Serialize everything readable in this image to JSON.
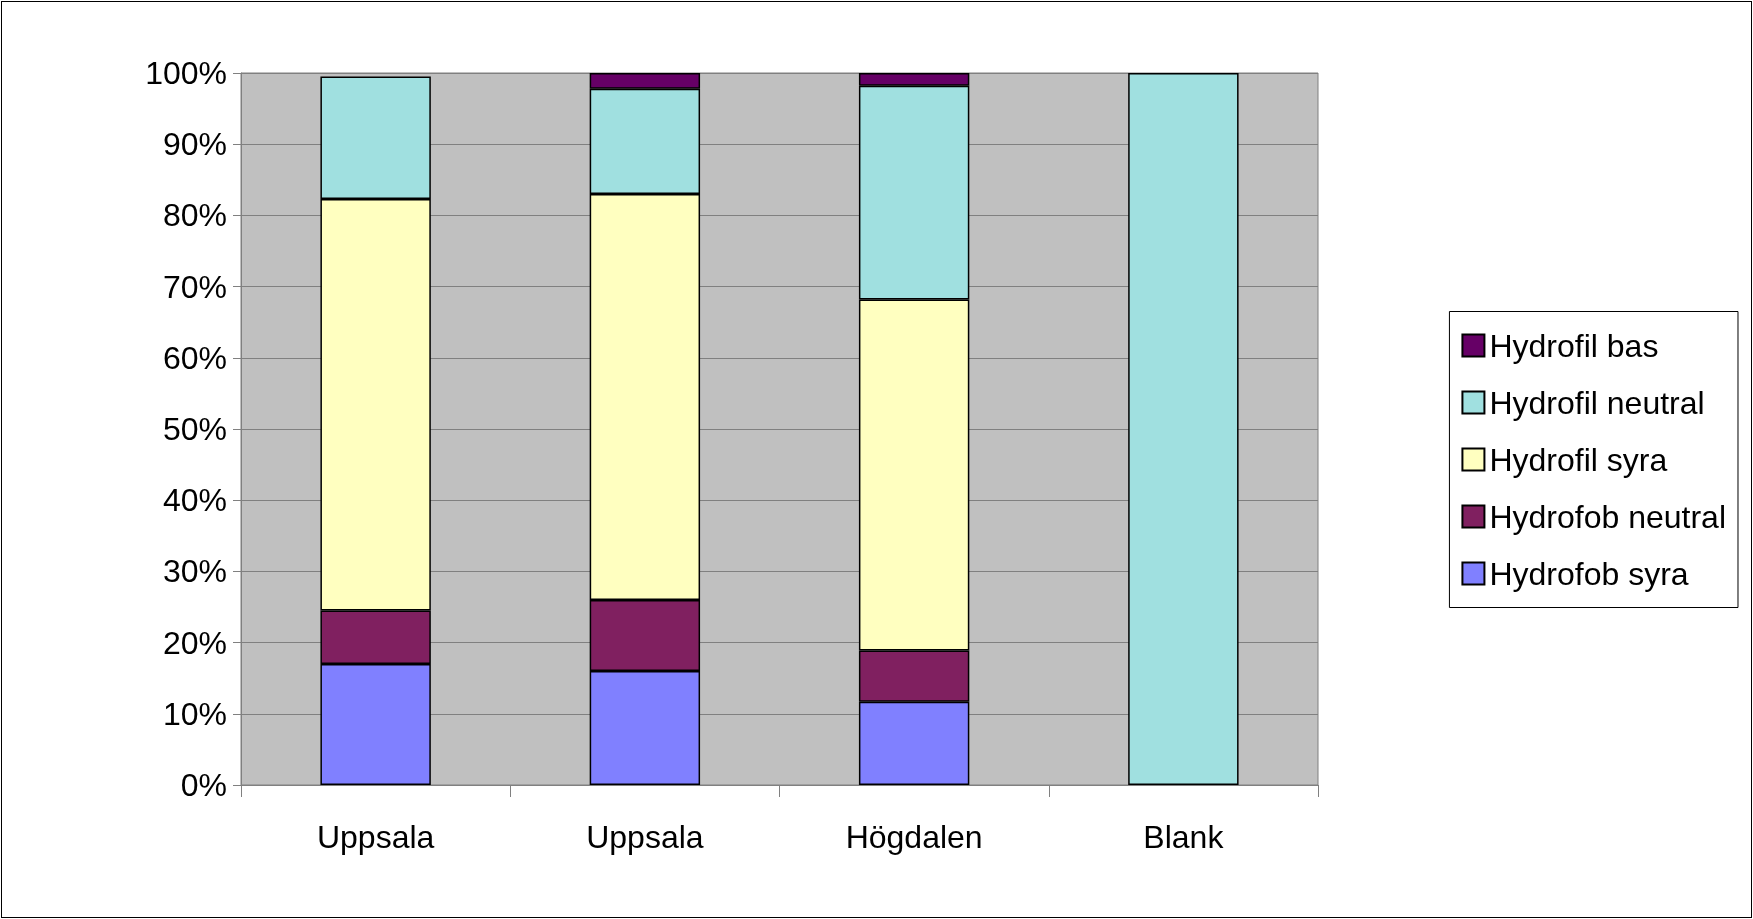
{
  "chart_data": {
    "type": "bar",
    "stacked": true,
    "categories": [
      "Uppsala",
      "Uppsala",
      "Högdalen",
      "Blank"
    ],
    "series": [
      {
        "name": "Hydrofob syra",
        "color": "#8080ff",
        "values": [
          17,
          16,
          11.7,
          null
        ]
      },
      {
        "name": "Hydrofob neutral",
        "color": "#802060",
        "values": [
          7.5,
          10,
          7.2,
          null
        ]
      },
      {
        "name": "Hydrofil syra",
        "color": "#ffffc0",
        "values": [
          57.8,
          57,
          49.3,
          null
        ]
      },
      {
        "name": "Hydrofil neutral",
        "color": "#a0e0e0",
        "values": [
          17.2,
          14.8,
          30,
          100
        ]
      },
      {
        "name": "Hydrofil bas",
        "color": "#660066",
        "values": [
          null,
          2.2,
          1.8,
          null
        ]
      }
    ],
    "ylim": [
      0,
      100
    ],
    "yticks": [
      {
        "value": 0,
        "label": "0%"
      },
      {
        "value": 10,
        "label": "10%"
      },
      {
        "value": 20,
        "label": "20%"
      },
      {
        "value": 30,
        "label": "30%"
      },
      {
        "value": 40,
        "label": "40%"
      },
      {
        "value": 50,
        "label": "50%"
      },
      {
        "value": 60,
        "label": "60%"
      },
      {
        "value": 70,
        "label": "70%"
      },
      {
        "value": 80,
        "label": "80%"
      },
      {
        "value": 90,
        "label": "90%"
      },
      {
        "value": 100,
        "label": "100%"
      }
    ],
    "grid": "y",
    "legend": "right"
  }
}
